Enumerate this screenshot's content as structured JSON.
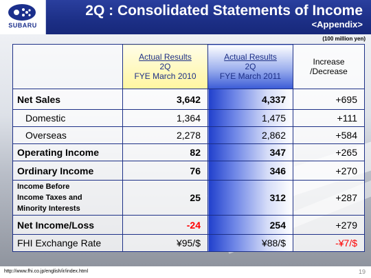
{
  "header": {
    "title": "2Q : Consolidated Statements of Income",
    "subtitle": "<Appendix>",
    "logo_text": "SUBARU"
  },
  "unit_label": "(100 million yen)",
  "columns": {
    "fy2010": {
      "line1": "Actual Results",
      "line2": "2Q",
      "line3": "FYE March 2010"
    },
    "fy2011": {
      "line1": "Actual Results",
      "line2": "2Q",
      "line3": "FYE March 2011"
    },
    "change": {
      "line1": "Increase",
      "line2": "/Decrease"
    }
  },
  "rows": [
    {
      "label": "Net Sales",
      "fy2010": "3,642",
      "fy2011": "4,337",
      "change": "+695"
    },
    {
      "label": "Domestic",
      "fy2010": "1,364",
      "fy2011": "1,475",
      "change": "+111"
    },
    {
      "label": "Overseas",
      "fy2010": "2,278",
      "fy2011": "2,862",
      "change": "+584"
    },
    {
      "label": "Operating Income",
      "fy2010": "82",
      "fy2011": "347",
      "change": "+265"
    },
    {
      "label": "Ordinary Income",
      "fy2010": "76",
      "fy2011": "346",
      "change": "+270"
    },
    {
      "label_lines": [
        "Income Before",
        "Income Taxes and",
        "Minority Interests"
      ],
      "fy2010": "25",
      "fy2011": "312",
      "change": "+287"
    },
    {
      "label": "Net Income/Loss",
      "fy2010": "-24",
      "fy2011": "254",
      "change": "+279"
    },
    {
      "label": "FHI Exchange Rate",
      "fy2010": "¥95/$",
      "fy2011": "¥88/$",
      "change": "-¥7/$"
    }
  ],
  "footer": {
    "url": "http://www.fhi.co.jp/english/ir/index.html",
    "page": "19"
  },
  "colors": {
    "brand_blue": "#1c2f86",
    "negative_red": "#ff0000"
  }
}
